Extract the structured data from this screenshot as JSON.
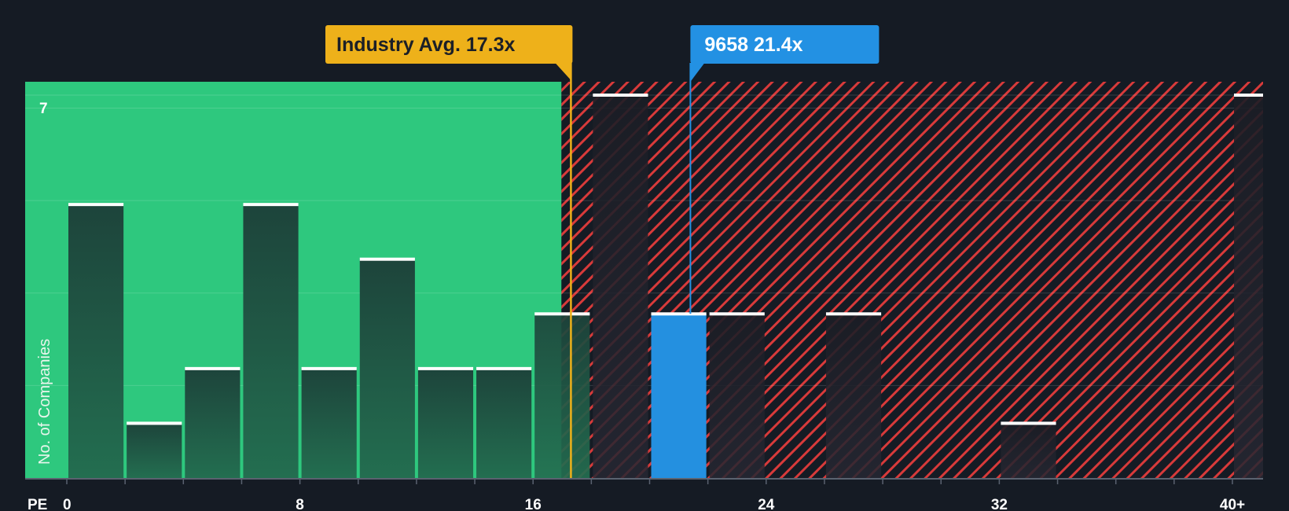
{
  "chart_data": {
    "type": "bar",
    "title": "",
    "xlabel": "PE",
    "ylabel": "No. of Companies",
    "xlim": [
      0,
      40
    ],
    "ylim": [
      0,
      7
    ],
    "x_ticks": [
      "0",
      "8",
      "16",
      "24",
      "32",
      "40+"
    ],
    "y_ticks": [
      "7"
    ],
    "bin_width": 2,
    "bins": [
      {
        "start": 0,
        "count": 5
      },
      {
        "start": 2,
        "count": 1
      },
      {
        "start": 4,
        "count": 2
      },
      {
        "start": 6,
        "count": 5
      },
      {
        "start": 8,
        "count": 2
      },
      {
        "start": 10,
        "count": 4
      },
      {
        "start": 12,
        "count": 2
      },
      {
        "start": 14,
        "count": 2
      },
      {
        "start": 16,
        "count": 3
      },
      {
        "start": 18,
        "count": 7
      },
      {
        "start": 20,
        "count": 3,
        "highlight": true
      },
      {
        "start": 22,
        "count": 3
      },
      {
        "start": 24,
        "count": 0
      },
      {
        "start": 26,
        "count": 3
      },
      {
        "start": 28,
        "count": 0
      },
      {
        "start": 30,
        "count": 0
      },
      {
        "start": 32,
        "count": 1
      },
      {
        "start": 34,
        "count": 0
      },
      {
        "start": 36,
        "count": 0
      },
      {
        "start": 38,
        "count": 0
      },
      {
        "start": 40,
        "count": 7
      }
    ],
    "fair_zone_end": 18,
    "industry_avg": {
      "label": "Industry Avg. 17.3x",
      "value": 17.3
    },
    "company": {
      "label": "9658 21.4x",
      "value": 21.4
    },
    "colors": {
      "background": "#151b24",
      "green_zone": "#2ec87e",
      "red_hatch": "#d83a3a",
      "bar_fill_dark": "#1f4a3f",
      "bar_fill_red": "#23242c",
      "highlight": "#2490e0",
      "industry": "#eeb11a",
      "company": "#2391e3"
    }
  }
}
